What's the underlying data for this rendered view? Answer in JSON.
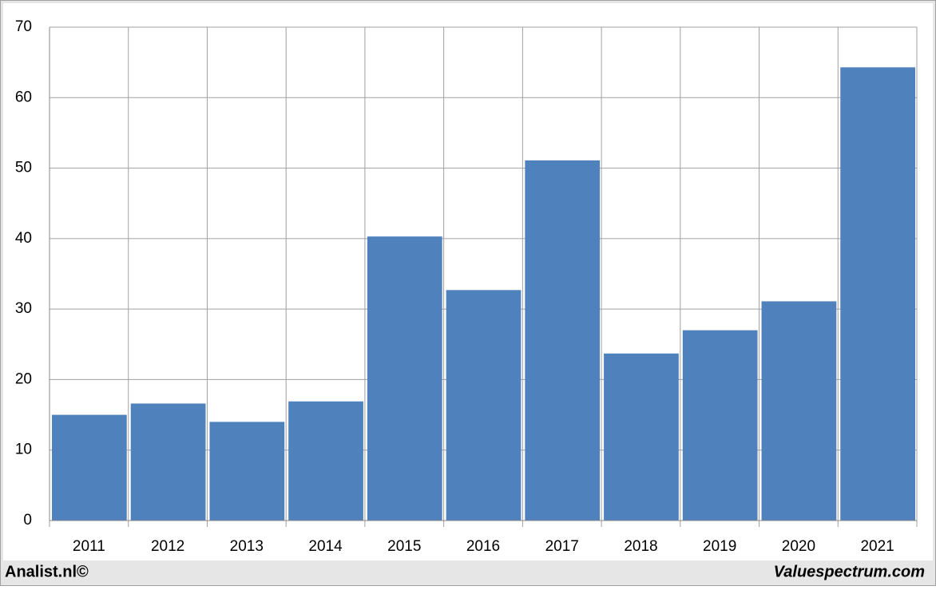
{
  "chart_data": {
    "type": "bar",
    "categories": [
      "2011",
      "2012",
      "2013",
      "2014",
      "2015",
      "2016",
      "2017",
      "2018",
      "2019",
      "2020",
      "2021"
    ],
    "values": [
      15.0,
      16.6,
      14.0,
      16.9,
      40.3,
      32.7,
      51.1,
      23.7,
      27.0,
      31.1,
      64.3
    ],
    "color": "#4f81bd",
    "ylim": [
      0,
      70
    ],
    "yticks": [
      0,
      10,
      20,
      30,
      40,
      50,
      60,
      70
    ],
    "grid": true,
    "footer_left": "Analist.nl©",
    "footer_right": "Valuespectrum.com"
  }
}
